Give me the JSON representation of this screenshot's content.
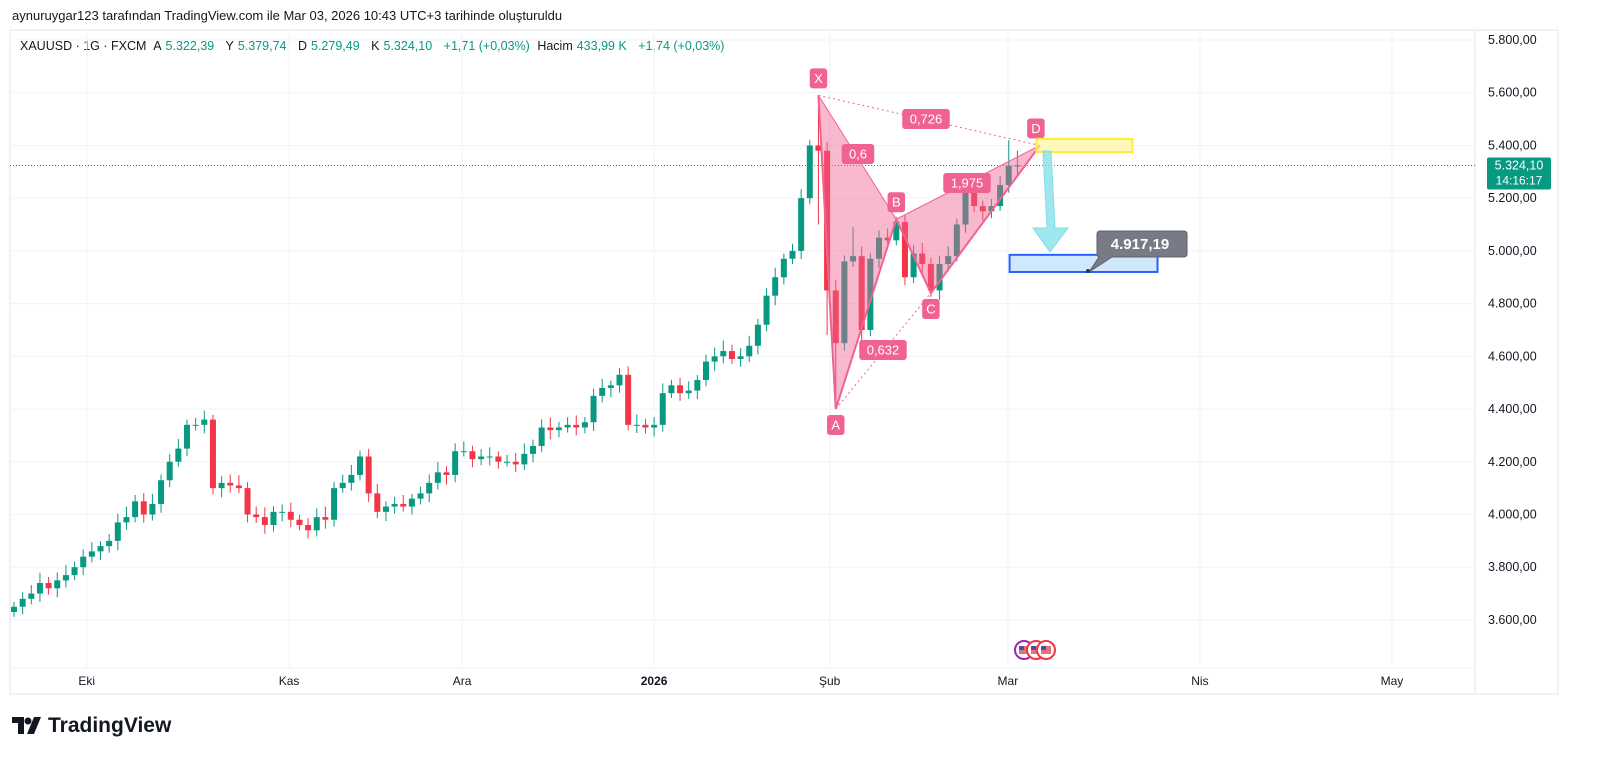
{
  "caption": "aynuruygar123 tarafından TradingView.com ile Mar 03, 2026 10:43 UTC+3 tarihinde oluşturuldu",
  "legend": {
    "symbol": "XAUUSD · 1G · FXCM",
    "open_label": "A",
    "open": "5.322,39",
    "high_label": "Y",
    "high": "5.379,74",
    "low_label": "D",
    "low": "5.279,49",
    "close_label": "K",
    "close": "5.324,10",
    "change": "+1,71 (+0,03%)",
    "volume_label": "Hacim",
    "volume": "433,99 K",
    "volume_change": "+1,74 (+0,03%)"
  },
  "logo_text": "TradingView",
  "colors": {
    "up": "#089981",
    "down": "#f23645",
    "pattern": "#f06292",
    "target": "#2962ff",
    "entry": "#ffeb3b",
    "arrow": "#80deea"
  },
  "chart_data": {
    "type": "candlestick",
    "symbol": "XAUUSD",
    "interval": "1D",
    "ylim": [
      3450,
      5870
    ],
    "y_ticks": [
      5800,
      5600,
      5400,
      5200,
      5000,
      4800,
      4600,
      4400,
      4200,
      4000,
      3800,
      3600
    ],
    "y_tick_labels": [
      "5.800,00",
      "5.600,00",
      "5.400,00",
      "5.200,00",
      "5.000,00",
      "4.800,00",
      "4.600,00",
      "4.400,00",
      "4.200,00",
      "4.000,00",
      "3.800,00",
      "3.600,00"
    ],
    "x_ticks": [
      {
        "label": "Eki",
        "index": 8.4
      },
      {
        "label": "Kas",
        "index": 31.8
      },
      {
        "label": "Ara",
        "index": 51.8
      },
      {
        "label": "2026",
        "index": 74
      },
      {
        "label": "Şub",
        "index": 94.3
      },
      {
        "label": "Mar",
        "index": 114.9
      },
      {
        "label": "Nis",
        "index": 137.1
      },
      {
        "label": "May",
        "index": 159.3
      }
    ],
    "first_open": 3630,
    "closes": [
      3650,
      3680,
      3700,
      3740,
      3720,
      3750,
      3770,
      3800,
      3840,
      3860,
      3880,
      3900,
      3970,
      3990,
      4050,
      4000,
      4040,
      4130,
      4200,
      4250,
      4340,
      4340,
      4360,
      4100,
      4120,
      4110,
      4100,
      4000,
      3990,
      3960,
      4010,
      4010,
      3980,
      3960,
      3940,
      3990,
      3980,
      4100,
      4120,
      4150,
      4220,
      4080,
      4010,
      4030,
      4040,
      4030,
      4060,
      4080,
      4120,
      4160,
      4150,
      4240,
      4240,
      4210,
      4220,
      4220,
      4200,
      4200,
      4190,
      4230,
      4260,
      4330,
      4320,
      4330,
      4340,
      4330,
      4350,
      4450,
      4480,
      4490,
      4530,
      4340,
      4340,
      4330,
      4340,
      4460,
      4490,
      4460,
      4470,
      4510,
      4580,
      4600,
      4620,
      4590,
      4600,
      4640,
      4720,
      4830,
      4900,
      4970,
      5000,
      5200,
      5400,
      5380,
      4850,
      4650,
      4960,
      4980,
      4700,
      4970,
      5050,
      5040,
      5110,
      4900,
      4990,
      4950,
      4850,
      4950,
      4980,
      5100,
      5250,
      5170,
      5150,
      5170,
      5250,
      5322,
      5324
    ],
    "wick_overrides": {
      "92": {
        "h": 5420
      },
      "93": {
        "h": 5590,
        "l": 5100
      },
      "94": {
        "l": 4680
      },
      "95": {
        "l": 4400
      },
      "97": {
        "h": 5090
      },
      "98": {
        "l": 4620
      },
      "110": {
        "h": 5260
      },
      "115": {
        "h": 5420
      },
      "116": {
        "h": 5380,
        "l": 5280
      }
    },
    "last_price": {
      "value": 5324.1,
      "label": "5.324,10",
      "countdown": "14:16:17"
    },
    "harmonic_pattern": {
      "points": [
        {
          "label": "X",
          "index": 93,
          "price": 5590
        },
        {
          "label": "A",
          "index": 95,
          "price": 4400
        },
        {
          "label": "B",
          "index": 102,
          "price": 5120
        },
        {
          "label": "C",
          "index": 106,
          "price": 4840
        },
        {
          "label": "D",
          "index": 118.6,
          "price": 5400
        }
      ],
      "ratios": {
        "XB": "0,6",
        "AC": "0,632",
        "BD": "1,975",
        "XD": "0,726"
      }
    },
    "entry_zone": {
      "from_index": 118.2,
      "to_index": 129.3,
      "top": 5425,
      "bottom": 5375
    },
    "target_zone": {
      "from_index": 115.1,
      "to_index": 132.2,
      "top": 4985,
      "bottom": 4920
    },
    "target_label": "4.917,19"
  }
}
